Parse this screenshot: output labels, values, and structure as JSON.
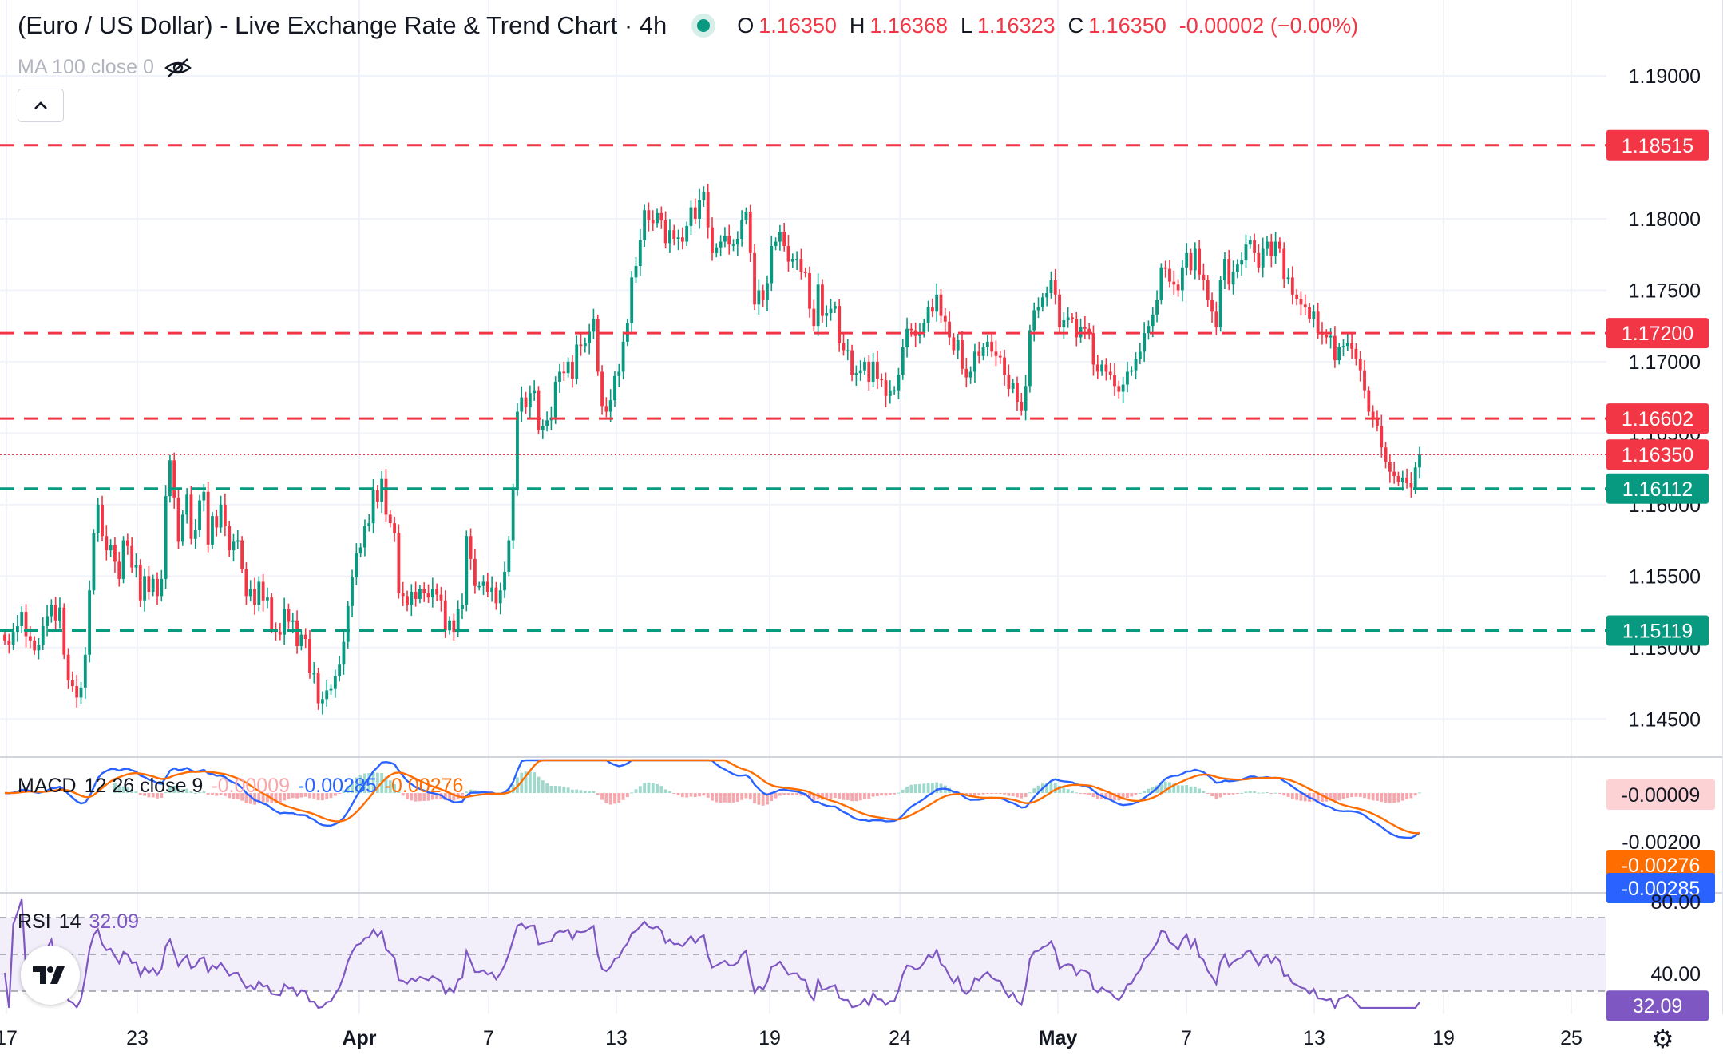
{
  "header": {
    "title": "(Euro / US Dollar) - Live Exchange Rate & Trend Chart · 4h",
    "ohlc": [
      {
        "k": "O",
        "v": "1.16350"
      },
      {
        "k": "H",
        "v": "1.16368"
      },
      {
        "k": "L",
        "v": "1.16323"
      },
      {
        "k": "C",
        "v": "1.16350"
      },
      {
        "k": "",
        "v": "-0.00002 (−0.00%)"
      }
    ],
    "ma_label": "MA 100 close 0",
    "status_color": "#089981"
  },
  "macd_label": {
    "name": "MACD",
    "params": "12 26 close 9",
    "hist": "-0.00009",
    "macd": "-0.00285",
    "signal": "-0.00276"
  },
  "rsi_label": {
    "name": "RSI",
    "params": "14",
    "value": "32.09"
  },
  "colors": {
    "up": "#089981",
    "down": "#f23645",
    "macd_line": "#2962ff",
    "signal_line": "#ff6d00",
    "rsi_line": "#7e57c2",
    "rsi_band": "#f3effa"
  },
  "chart_data": [
    {
      "type": "candlestick",
      "title": "(Euro / US Dollar) - Live Exchange Rate & Trend Chart · 4h",
      "x_ticks": [
        "17",
        "23",
        "Apr",
        "7",
        "13",
        "19",
        "24",
        "May",
        "7",
        "13",
        "19",
        "25"
      ],
      "y_ticks": [
        "1.19000",
        "1.18000",
        "1.17500",
        "1.17000",
        "1.16500",
        "1.16000",
        "1.15500",
        "1.15000",
        "1.14500"
      ],
      "ylim": [
        1.1425,
        1.19
      ],
      "last_price": "1.16350",
      "horizontal_levels": [
        {
          "value": "1.18515",
          "color": "#f23645"
        },
        {
          "value": "1.17200",
          "color": "#f23645"
        },
        {
          "value": "1.16602",
          "color": "#f23645"
        },
        {
          "value": "1.16112",
          "color": "#089981"
        },
        {
          "value": "1.15119",
          "color": "#089981"
        }
      ],
      "close": [
        1.1505,
        1.1502,
        1.1511,
        1.1515,
        1.1525,
        1.1508,
        1.1505,
        1.1498,
        1.1502,
        1.1515,
        1.1522,
        1.153,
        1.1519,
        1.1528,
        1.1495,
        1.1477,
        1.1473,
        1.1465,
        1.1472,
        1.1495,
        1.154,
        1.158,
        1.16,
        1.1578,
        1.1568,
        1.1572,
        1.156,
        1.1548,
        1.1575,
        1.1571,
        1.1556,
        1.1558,
        1.1533,
        1.155,
        1.1539,
        1.1548,
        1.1536,
        1.1548,
        1.1606,
        1.1631,
        1.1605,
        1.1574,
        1.1593,
        1.1607,
        1.1576,
        1.1582,
        1.1603,
        1.1609,
        1.1572,
        1.1592,
        1.1584,
        1.16,
        1.1585,
        1.1568,
        1.1574,
        1.1575,
        1.1555,
        1.1536,
        1.1541,
        1.153,
        1.1546,
        1.1533,
        1.1535,
        1.1513,
        1.1511,
        1.1509,
        1.1527,
        1.1518,
        1.1519,
        1.1501,
        1.1509,
        1.1506,
        1.1482,
        1.1482,
        1.1461,
        1.1464,
        1.147,
        1.1471,
        1.148,
        1.1488,
        1.1504,
        1.1529,
        1.1549,
        1.1566,
        1.157,
        1.1585,
        1.1587,
        1.161,
        1.1602,
        1.1618,
        1.1593,
        1.1587,
        1.158,
        1.1538,
        1.1536,
        1.153,
        1.1539,
        1.1534,
        1.1541,
        1.1538,
        1.1535,
        1.1541,
        1.1537,
        1.1533,
        1.1512,
        1.1519,
        1.1511,
        1.1527,
        1.153,
        1.1578,
        1.1562,
        1.1543,
        1.1543,
        1.1546,
        1.1539,
        1.1542,
        1.1531,
        1.154,
        1.1553,
        1.1575,
        1.161,
        1.1665,
        1.1675,
        1.1668,
        1.1678,
        1.168,
        1.1652,
        1.1655,
        1.1659,
        1.1661,
        1.1686,
        1.1693,
        1.1692,
        1.17,
        1.1688,
        1.1712,
        1.1711,
        1.1713,
        1.1721,
        1.173,
        1.1693,
        1.1669,
        1.1665,
        1.1673,
        1.169,
        1.1693,
        1.1714,
        1.1727,
        1.1759,
        1.1767,
        1.1785,
        1.1806,
        1.1799,
        1.1797,
        1.1804,
        1.1799,
        1.1783,
        1.1792,
        1.1786,
        1.1787,
        1.1784,
        1.1795,
        1.1808,
        1.18,
        1.1813,
        1.1819,
        1.1794,
        1.1776,
        1.178,
        1.1784,
        1.1788,
        1.1782,
        1.1782,
        1.1786,
        1.1799,
        1.1805,
        1.1776,
        1.174,
        1.175,
        1.1743,
        1.1755,
        1.1781,
        1.1784,
        1.1791,
        1.1781,
        1.177,
        1.1772,
        1.1772,
        1.1763,
        1.1762,
        1.1737,
        1.1725,
        1.1754,
        1.1732,
        1.1734,
        1.1737,
        1.1739,
        1.1713,
        1.1708,
        1.1708,
        1.1691,
        1.1692,
        1.1694,
        1.17,
        1.1686,
        1.17,
        1.1688,
        1.1687,
        1.1676,
        1.168,
        1.168,
        1.1691,
        1.171,
        1.1723,
        1.1722,
        1.1718,
        1.172,
        1.1727,
        1.1738,
        1.1735,
        1.1747,
        1.1732,
        1.1728,
        1.1717,
        1.1708,
        1.1715,
        1.1695,
        1.1689,
        1.1693,
        1.1707,
        1.1704,
        1.171,
        1.1714,
        1.1707,
        1.1704,
        1.1703,
        1.1691,
        1.1681,
        1.1685,
        1.1672,
        1.1666,
        1.1683,
        1.1722,
        1.1736,
        1.1738,
        1.1745,
        1.1748,
        1.1757,
        1.1747,
        1.1724,
        1.1729,
        1.1731,
        1.173,
        1.1717,
        1.1724,
        1.1723,
        1.172,
        1.1698,
        1.1693,
        1.1698,
        1.1693,
        1.1691,
        1.1683,
        1.1679,
        1.1684,
        1.1693,
        1.1694,
        1.1702,
        1.1707,
        1.172,
        1.1725,
        1.1733,
        1.1743,
        1.1766,
        1.1765,
        1.1756,
        1.1754,
        1.175,
        1.1766,
        1.1776,
        1.1764,
        1.1779,
        1.1761,
        1.1757,
        1.1743,
        1.1735,
        1.1724,
        1.1757,
        1.1772,
        1.1754,
        1.1763,
        1.1768,
        1.1771,
        1.1782,
        1.1785,
        1.1776,
        1.1766,
        1.1779,
        1.1784,
        1.1774,
        1.1784,
        1.1779,
        1.1758,
        1.1759,
        1.1747,
        1.1744,
        1.174,
        1.1738,
        1.173,
        1.1735,
        1.172,
        1.1719,
        1.1717,
        1.1718,
        1.1701,
        1.171,
        1.1711,
        1.1713,
        1.1709,
        1.1702,
        1.1694,
        1.168,
        1.1665,
        1.166,
        1.1655,
        1.164,
        1.163,
        1.1623,
        1.162,
        1.1616,
        1.1619,
        1.1615,
        1.1612,
        1.1626,
        1.1635
      ]
    },
    {
      "type": "macd",
      "title": "MACD 12 26 close 9",
      "y_ticks": [
        "-0.00200"
      ],
      "values": {
        "histogram": "-0.00009",
        "macd": "-0.00285",
        "signal": "-0.00276"
      }
    },
    {
      "type": "line",
      "title": "RSI 14",
      "y_ticks": [
        "80.00",
        "40.00"
      ],
      "ylim": [
        0,
        100
      ],
      "last_value": "32.09"
    }
  ]
}
